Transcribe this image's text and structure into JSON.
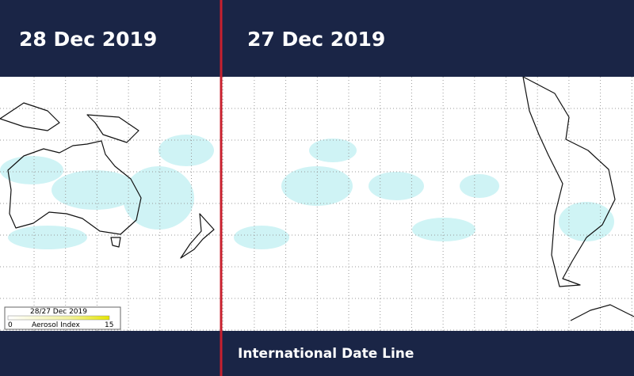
{
  "header": {
    "left_date": "28 Dec 2019",
    "right_date": "27 Dec 2019"
  },
  "footer": {
    "label": "International Date Line"
  },
  "legend": {
    "title": "28/27 Dec 2019",
    "min": 0,
    "name": "Aerosol Index",
    "max": 15
  }
}
